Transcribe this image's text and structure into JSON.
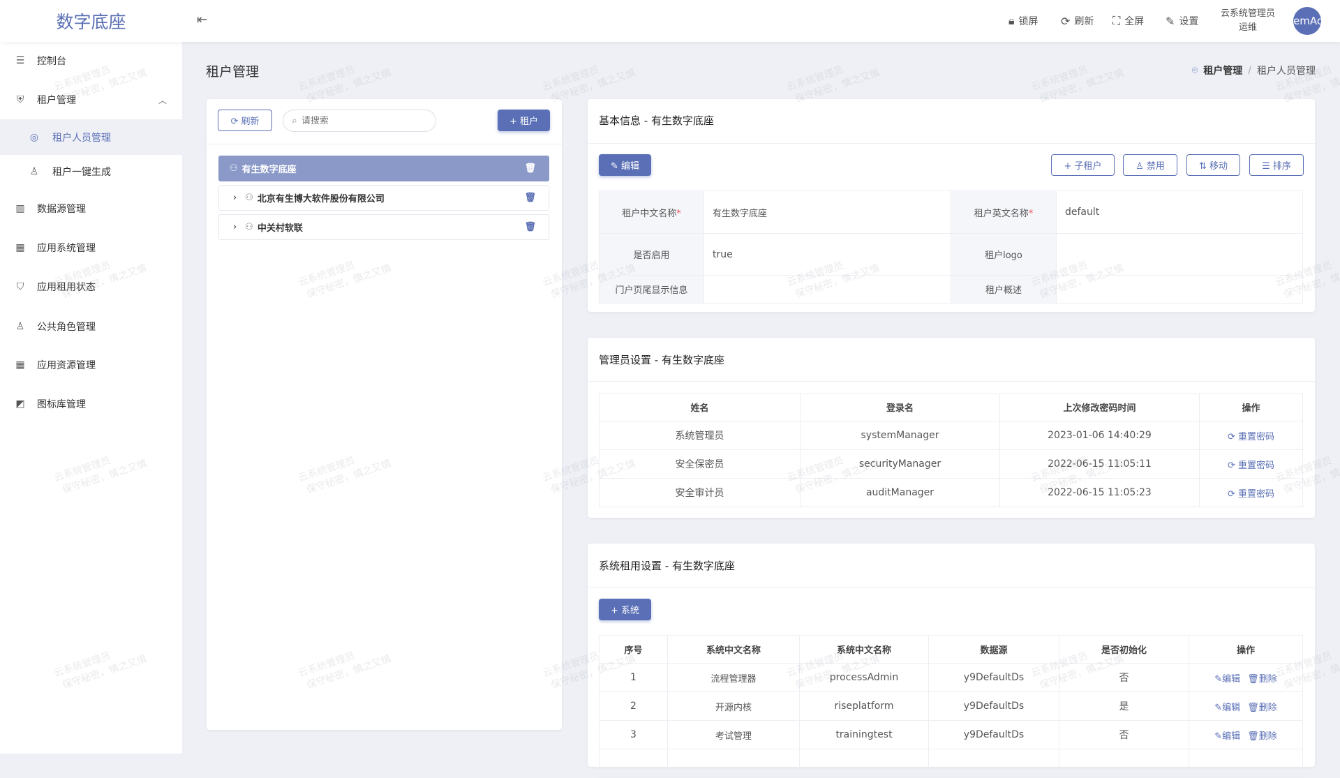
{
  "app": {
    "logo": "数字底座"
  },
  "header": {
    "actions": [
      {
        "icon": "lock-icon",
        "glyph": "🔒︎",
        "label": "锁屏"
      },
      {
        "icon": "refresh-icon",
        "glyph": "⟳",
        "label": "刷新"
      },
      {
        "icon": "fullscreen-icon",
        "glyph": "⛶",
        "label": "全屏"
      },
      {
        "icon": "settings-icon",
        "glyph": "✎",
        "label": "设置"
      }
    ],
    "user_name": "云系统管理员",
    "user_role": "运维",
    "avatar_text": "emAd"
  },
  "sidebar": {
    "items": [
      {
        "label": "控制台",
        "glyph": "☰"
      },
      {
        "label": "租户管理",
        "glyph": "⛨"
      },
      {
        "label": "租户人员管理",
        "glyph": "◎"
      },
      {
        "label": "租户一键生成",
        "glyph": "♙"
      },
      {
        "label": "数据源管理",
        "glyph": "▥"
      },
      {
        "label": "应用系统管理",
        "glyph": "▦"
      },
      {
        "label": "应用租用状态",
        "glyph": "⛉"
      },
      {
        "label": "公共角色管理",
        "glyph": "♙"
      },
      {
        "label": "应用资源管理",
        "glyph": "▦"
      },
      {
        "label": "图标库管理",
        "glyph": "◩"
      }
    ]
  },
  "page": {
    "title": "租户管理",
    "breadcrumb": [
      "租户管理",
      "/",
      "租户人员管理"
    ]
  },
  "tree_panel": {
    "refresh_label": "⟳ 刷新",
    "search_placeholder": "请搜索",
    "add_label": "+ 租户",
    "nodes": [
      {
        "label": "有生数字底座",
        "selected": true
      },
      {
        "label": "北京有生博大软件股份有限公司"
      },
      {
        "label": "中关村软联"
      }
    ]
  },
  "basic_info": {
    "title": "基本信息 - 有生数字底座",
    "edit_label": "✎ 编辑",
    "actions": [
      "+ 子租户",
      "♙ 禁用",
      "⇅ 移动",
      "☰ 排序"
    ],
    "fields": {
      "cn_name_label": "租户中文名称",
      "cn_name": "有生数字底座",
      "en_name_label": "租户英文名称",
      "en_name": "default",
      "enabled_label": "是否启用",
      "enabled": "true",
      "logo_label": "租户logo",
      "footer_label": "门户页尾显示信息",
      "desc_label": "租户概述",
      "required_mark": "*"
    }
  },
  "admin": {
    "title": "管理员设置 - 有生数字底座",
    "columns": [
      "姓名",
      "登录名",
      "上次修改密码时间",
      "操作"
    ],
    "reset_label": "重置密码",
    "rows": [
      [
        "系统管理员",
        "systemManager",
        "2023-01-06 14:40:29"
      ],
      [
        "安全保密员",
        "securityManager",
        "2022-06-15 11:05:11"
      ],
      [
        "安全审计员",
        "auditManager",
        "2022-06-15 11:05:23"
      ]
    ]
  },
  "systems": {
    "title": "系统租用设置 - 有生数字底座",
    "add_label": "+ 系统",
    "columns": [
      "序号",
      "系统中文名称",
      "系统中文名称",
      "数据源",
      "是否初始化",
      "操作"
    ],
    "edit_label": "编辑",
    "delete_label": "删除",
    "rows": [
      [
        "1",
        "流程管理器",
        "processAdmin",
        "y9DefaultDs",
        "否"
      ],
      [
        "2",
        "开源内核",
        "riseplatform",
        "y9DefaultDs",
        "是"
      ],
      [
        "3",
        "考试管理",
        "trainingtest",
        "y9DefaultDs",
        "否"
      ]
    ]
  },
  "watermark": {
    "line1": "云系统管理员",
    "line2": "保守秘密，慎之又慎"
  },
  "colors": {
    "primary": "#5a6fb5",
    "selected_node": "#8a99c8",
    "background": "#eef0f6"
  }
}
